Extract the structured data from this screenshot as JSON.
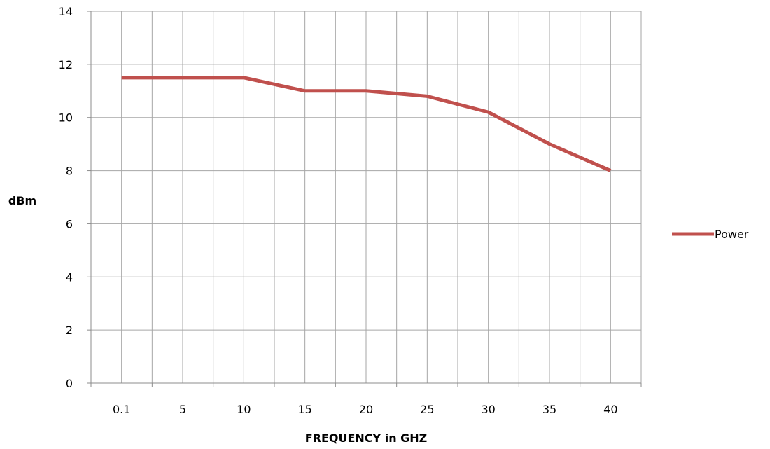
{
  "chart_data": {
    "type": "line",
    "title": "",
    "xlabel": "FREQUENCY in GHZ",
    "ylabel": "dBm",
    "categories": [
      "0.1",
      "5",
      "10",
      "15",
      "20",
      "25",
      "30",
      "35",
      "40"
    ],
    "series": [
      {
        "name": "Power",
        "values": [
          11.5,
          11.5,
          11.5,
          11.0,
          11.0,
          10.8,
          10.2,
          9.0,
          8.0
        ],
        "color": "#c0504d"
      }
    ],
    "yticks": [
      "0",
      "2",
      "4",
      "6",
      "8",
      "10",
      "12",
      "14"
    ],
    "ylim": [
      0,
      14
    ],
    "grid": true,
    "legend_position": "right"
  }
}
